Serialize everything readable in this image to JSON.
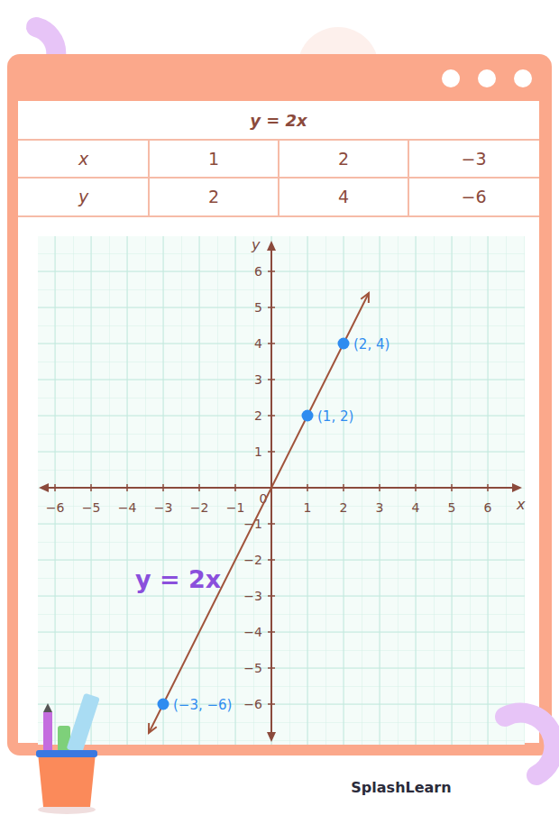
{
  "table": {
    "title": "y = 2x",
    "rows": [
      [
        "x",
        "1",
        "2",
        "−3"
      ],
      [
        "y",
        "2",
        "4",
        "−6"
      ]
    ]
  },
  "chart_data": {
    "type": "line",
    "x_label": "x",
    "y_label": "y",
    "xlim": [
      -6.4,
      6.9
    ],
    "ylim": [
      -7,
      6.8
    ],
    "xticks": [
      {
        "value": -6,
        "label": "−6"
      },
      {
        "value": -5,
        "label": "−5"
      },
      {
        "value": -4,
        "label": "−4"
      },
      {
        "value": -3,
        "label": "−3"
      },
      {
        "value": -2,
        "label": "−2"
      },
      {
        "value": -1,
        "label": "−1"
      },
      0,
      1,
      2,
      3,
      4,
      5,
      6
    ],
    "yticks": [
      {
        "value": -6,
        "label": "−6"
      },
      {
        "value": -5,
        "label": "−5"
      },
      {
        "value": -4,
        "label": "−4"
      },
      {
        "value": -3,
        "label": "−3"
      },
      {
        "value": -2,
        "label": "−2"
      },
      {
        "value": -1,
        "label": "−1"
      },
      1,
      2,
      3,
      4,
      5,
      6
    ],
    "grid": true,
    "series": [
      {
        "type": "line",
        "color": "#a0533b",
        "x": [
          -3.4,
          2.7
        ],
        "values": [
          -6.8,
          5.4
        ]
      },
      {
        "type": "scatter",
        "color": "#2f8cf0",
        "marker": "circle",
        "data_labels": true,
        "x": [
          1,
          2,
          -3
        ],
        "values": [
          2,
          4,
          -6
        ],
        "value_labels": [
          "(1, 2)",
          "(2, 4)",
          "(−3, −6)"
        ]
      }
    ],
    "annotations": [
      "y = 2x"
    ]
  },
  "brand": "SplashLearn"
}
